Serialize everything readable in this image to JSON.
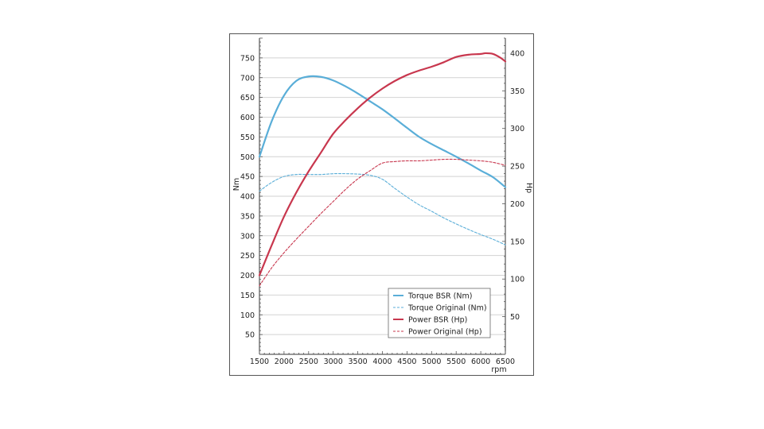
{
  "chart_data": {
    "type": "line",
    "title": "",
    "xlabel": "rpm",
    "ylabel_left": "Nm",
    "ylabel_right": "Hp",
    "xlim": [
      1500,
      6500
    ],
    "ylim_left": [
      0,
      800
    ],
    "ylim_right": [
      0,
      420
    ],
    "x_ticks": [
      1500,
      2000,
      2500,
      3000,
      3500,
      4000,
      4500,
      5000,
      5500,
      6000,
      6500
    ],
    "y_ticks_left": [
      50,
      100,
      150,
      200,
      250,
      300,
      350,
      400,
      450,
      500,
      550,
      600,
      650,
      700,
      750
    ],
    "y_ticks_right": [
      50,
      100,
      150,
      200,
      250,
      300,
      350,
      400
    ],
    "grid": true,
    "legend_position": "bottom-right",
    "series": [
      {
        "name": "Torque BSR (Nm)",
        "axis": "left",
        "style": "solid",
        "color": "#5aaed8",
        "x": [
          1500,
          1750,
          2000,
          2250,
          2500,
          2750,
          3000,
          3250,
          3500,
          3750,
          4000,
          4250,
          4500,
          4750,
          5000,
          5250,
          5500,
          5750,
          6000,
          6250,
          6500
        ],
        "y": [
          500,
          590,
          655,
          692,
          703,
          702,
          693,
          678,
          660,
          640,
          620,
          597,
          573,
          550,
          532,
          516,
          500,
          483,
          465,
          448,
          423
        ]
      },
      {
        "name": "Torque Original (Nm)",
        "axis": "left",
        "style": "dashed",
        "color": "#5aaed8",
        "x": [
          1500,
          1750,
          2000,
          2250,
          2500,
          2750,
          3000,
          3250,
          3500,
          3750,
          4000,
          4250,
          4500,
          4750,
          5000,
          5250,
          5500,
          5750,
          6000,
          6250,
          6500
        ],
        "y": [
          413,
          435,
          450,
          455,
          455,
          455,
          457,
          457,
          456,
          453,
          443,
          420,
          398,
          378,
          362,
          345,
          330,
          316,
          303,
          291,
          277
        ]
      },
      {
        "name": "Power BSR (Hp)",
        "axis": "right",
        "style": "solid",
        "color": "#c8374e",
        "x": [
          1500,
          1750,
          2000,
          2250,
          2500,
          2750,
          3000,
          3250,
          3500,
          3750,
          4000,
          4250,
          4500,
          4750,
          5000,
          5250,
          5500,
          5750,
          6000,
          6100,
          6250,
          6400,
          6500
        ],
        "y": [
          105,
          145,
          183,
          215,
          243,
          268,
          293,
          311,
          327,
          341,
          353,
          363,
          371,
          377,
          382,
          388,
          395,
          398,
          399,
          400,
          399,
          394,
          389
        ]
      },
      {
        "name": "Power Original (Hp)",
        "axis": "right",
        "style": "dashed",
        "color": "#c8374e",
        "x": [
          1500,
          1750,
          2000,
          2250,
          2500,
          2750,
          3000,
          3250,
          3500,
          3750,
          4000,
          4250,
          4500,
          4750,
          5000,
          5250,
          5500,
          5750,
          6000,
          6250,
          6500
        ],
        "y": [
          91,
          115,
          135,
          153,
          170,
          187,
          203,
          219,
          233,
          244,
          254,
          256,
          257,
          257,
          258,
          259,
          259,
          258,
          257,
          255,
          251
        ]
      }
    ]
  }
}
